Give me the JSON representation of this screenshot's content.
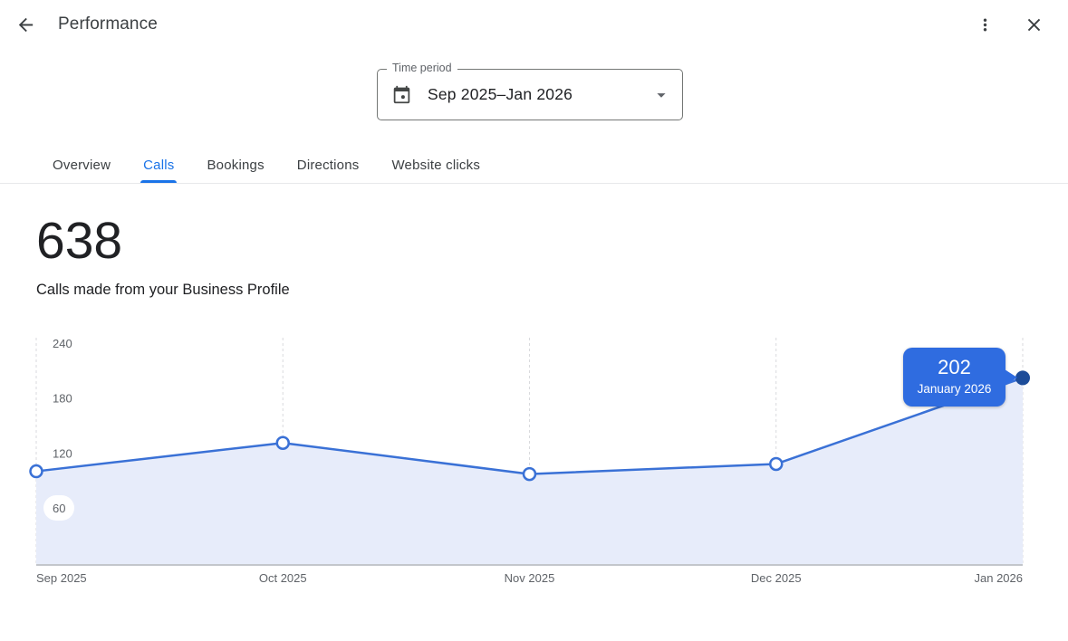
{
  "header": {
    "title": "Performance"
  },
  "icons": {
    "back": "left-arrow",
    "more_options": "vertical-kebab-dots",
    "close": "x-cross",
    "calendar": "calendar-with-dot",
    "dropdown": "filled-triangle-down"
  },
  "time_period": {
    "label": "Time period",
    "value": "Sep 2025–Jan 2026"
  },
  "tabs": [
    {
      "label": "Overview",
      "active": false
    },
    {
      "label": "Calls",
      "active": true
    },
    {
      "label": "Bookings",
      "active": false
    },
    {
      "label": "Directions",
      "active": false
    },
    {
      "label": "Website clicks",
      "active": false
    }
  ],
  "metric": {
    "value": "638",
    "description": "Calls made from your Business Profile"
  },
  "chart_data": {
    "type": "line",
    "title": "Calls made from your Business Profile",
    "x": [
      "Sep 2025",
      "Oct 2025",
      "Nov 2025",
      "Dec 2025",
      "Jan 2026"
    ],
    "values": [
      100,
      131,
      97,
      108,
      202
    ],
    "total": 638,
    "y_ticks": [
      60,
      120,
      180,
      240
    ],
    "ylim": [
      0,
      260
    ],
    "grid": "vertical-dashed",
    "area_fill": true,
    "legend": "none",
    "tooltip": {
      "value": "202",
      "label": "January 2026",
      "point": "Jan 2026"
    },
    "colors": {
      "line": "#3a71d6",
      "fill": "#e7ecfa",
      "active_dot": "#1d4c99",
      "tooltip_bg": "#2f6ce0",
      "axis_text": "#5f6368",
      "gridline": "#d9dadd",
      "baseline": "#c3c6cb"
    }
  },
  "colors": {
    "accent": "#1a73e8",
    "text_primary": "#202124",
    "text_secondary": "#5f6368",
    "tab_inactive": "#3c4043",
    "field_border": "#747775",
    "divider": "#e7e8eb"
  }
}
